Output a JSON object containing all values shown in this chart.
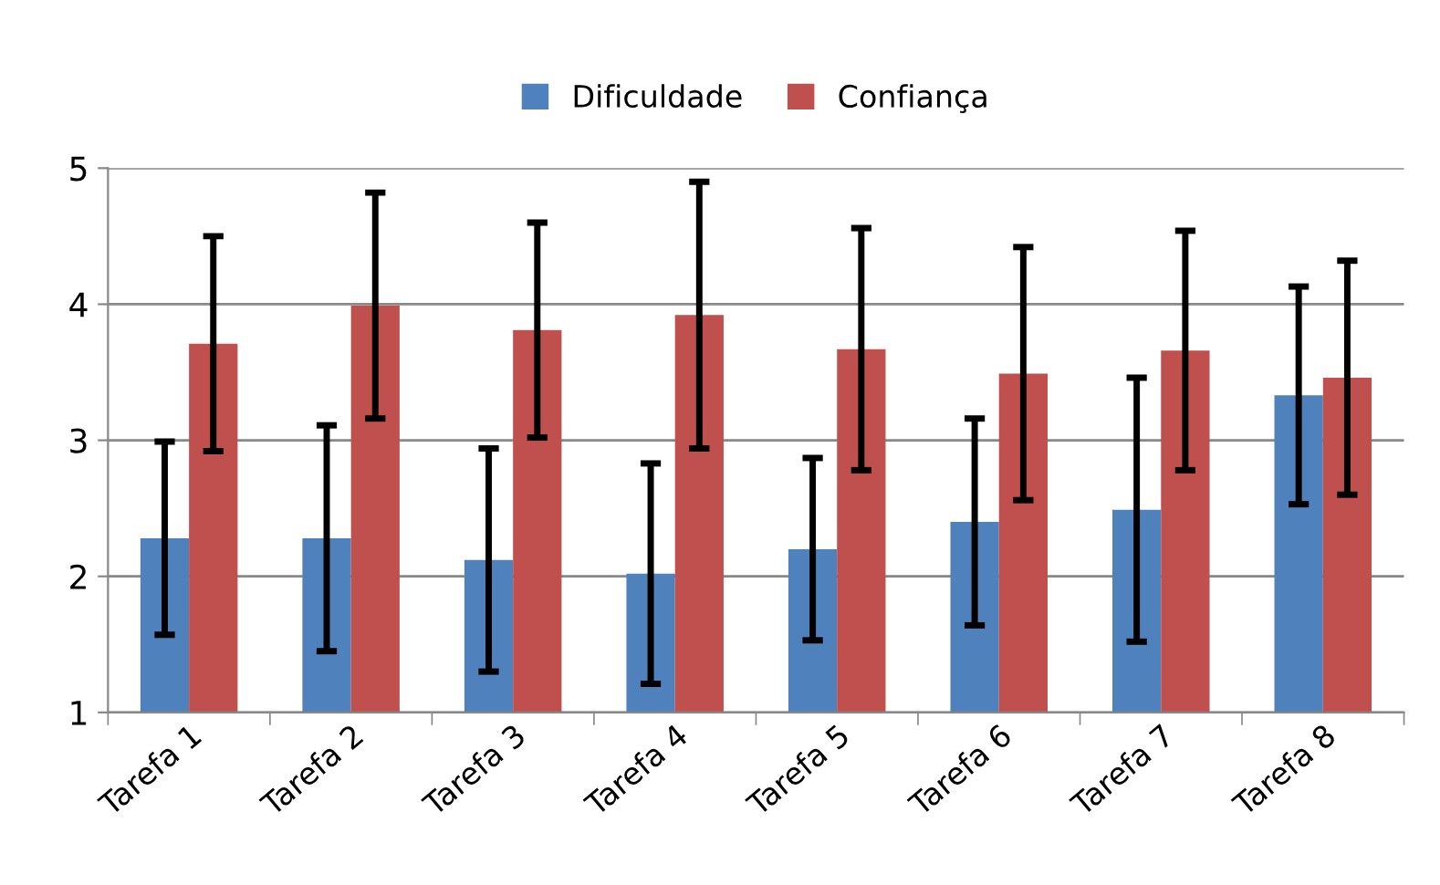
{
  "chart_data": {
    "type": "bar",
    "categories": [
      "Tarefa 1",
      "Tarefa 2",
      "Tarefa 3",
      "Tarefa 4",
      "Tarefa 5",
      "Tarefa 6",
      "Tarefa 7",
      "Tarefa 8"
    ],
    "series": [
      {
        "name": "Dificuldade",
        "color": "#4f81bd",
        "values": [
          2.28,
          2.28,
          2.12,
          2.02,
          2.2,
          2.4,
          2.49,
          3.33
        ],
        "errors": [
          0.71,
          0.83,
          0.82,
          0.81,
          0.67,
          0.76,
          0.97,
          0.8
        ]
      },
      {
        "name": "Confiança",
        "color": "#c0504d",
        "values": [
          3.71,
          3.99,
          3.81,
          3.92,
          3.67,
          3.49,
          3.66,
          3.46
        ],
        "errors": [
          0.79,
          0.83,
          0.79,
          0.98,
          0.89,
          0.93,
          0.88,
          0.86
        ]
      }
    ],
    "ylim": [
      1,
      5
    ],
    "yticks": [
      1,
      2,
      3,
      4,
      5
    ],
    "grid": "y",
    "legend": "top"
  }
}
